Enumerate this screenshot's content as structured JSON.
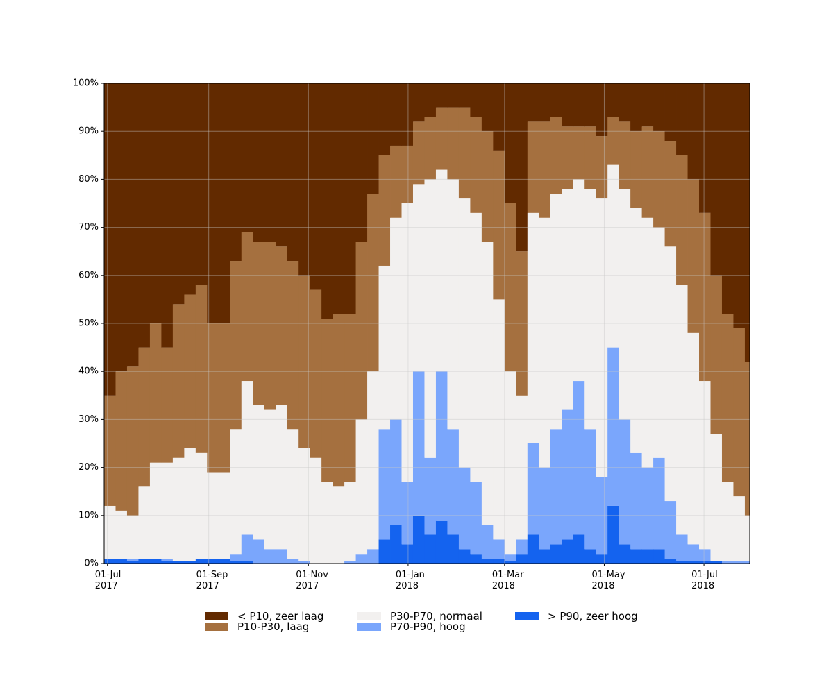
{
  "chart_data": {
    "type": "stacked-step",
    "x": [
      "2017-06-29",
      "2017-07-06",
      "2017-07-13",
      "2017-07-20",
      "2017-07-27",
      "2017-08-03",
      "2017-08-10",
      "2017-08-17",
      "2017-08-24",
      "2017-08-31",
      "2017-09-07",
      "2017-09-14",
      "2017-09-21",
      "2017-09-28",
      "2017-10-05",
      "2017-10-12",
      "2017-10-19",
      "2017-10-26",
      "2017-11-02",
      "2017-11-09",
      "2017-11-16",
      "2017-11-23",
      "2017-11-30",
      "2017-12-07",
      "2017-12-14",
      "2017-12-21",
      "2017-12-28",
      "2018-01-04",
      "2018-01-11",
      "2018-01-18",
      "2018-01-25",
      "2018-02-01",
      "2018-02-08",
      "2018-02-15",
      "2018-02-22",
      "2018-03-01",
      "2018-03-08",
      "2018-03-15",
      "2018-03-22",
      "2018-03-29",
      "2018-04-05",
      "2018-04-12",
      "2018-04-19",
      "2018-04-26",
      "2018-05-03",
      "2018-05-10",
      "2018-05-17",
      "2018-05-24",
      "2018-05-31",
      "2018-06-07",
      "2018-06-14",
      "2018-06-21",
      "2018-06-28",
      "2018-07-05",
      "2018-07-12",
      "2018-07-19",
      "2018-07-26"
    ],
    "series": [
      {
        "name": "> P90, zeer hoog",
        "color": "#1463ef",
        "values": [
          1,
          1,
          0.5,
          1,
          1,
          0.5,
          0.5,
          0.5,
          1,
          1,
          1,
          0.5,
          0.5,
          0,
          0,
          0,
          0,
          0,
          0,
          0,
          0,
          0,
          0,
          0,
          5,
          8,
          4,
          10,
          6,
          9,
          6,
          3,
          2,
          1,
          1,
          0.5,
          2,
          6,
          3,
          4,
          5,
          6,
          3,
          2,
          12,
          4,
          3,
          3,
          3,
          1,
          0.5,
          0.5,
          0.5,
          0.5,
          0,
          0,
          0
        ]
      },
      {
        "name": "P70-P90, hoog",
        "color": "#7aa6fc",
        "values": [
          0,
          0,
          0.5,
          0,
          0,
          0.5,
          0,
          0,
          0,
          0,
          0,
          1.5,
          5.5,
          5,
          3,
          3,
          1,
          0.5,
          0,
          0,
          0,
          0.5,
          2,
          3,
          23,
          22,
          13,
          30,
          16,
          31,
          22,
          17,
          15,
          7,
          4,
          1.5,
          3,
          19,
          17,
          24,
          27,
          32,
          25,
          16,
          33,
          26,
          20,
          17,
          19,
          12,
          5.5,
          3.5,
          2.5,
          0,
          0.5,
          0.5,
          0.5
        ]
      },
      {
        "name": "P30-P70, normaal",
        "color": "#f2f0ef",
        "values": [
          11,
          10,
          9,
          15,
          20,
          20,
          21.5,
          23.5,
          22,
          18,
          18,
          26,
          32,
          28,
          29,
          30,
          27,
          23.5,
          22,
          17,
          16,
          16.5,
          28,
          37,
          34,
          42,
          58,
          39,
          58,
          42,
          52,
          56,
          56,
          59,
          50,
          38,
          30,
          48,
          52,
          49,
          46,
          42,
          50,
          58,
          38,
          48,
          51,
          52,
          48,
          53,
          52,
          44,
          35,
          26.5,
          16.5,
          13.5,
          9.5
        ]
      },
      {
        "name": "P10-P30, laag",
        "color": "#a5703f",
        "values": [
          23,
          29,
          31,
          29,
          29,
          24,
          32,
          32,
          35,
          31,
          31,
          35,
          31,
          34,
          35,
          33,
          35,
          36,
          35,
          34,
          36,
          35,
          37,
          37,
          23,
          15,
          12,
          13,
          13,
          13,
          15,
          19,
          20,
          23,
          31,
          35,
          30,
          19,
          20,
          16,
          13,
          11,
          13,
          13,
          10,
          14,
          16,
          19,
          20,
          22,
          27,
          32,
          35,
          33,
          35,
          35,
          32
        ]
      },
      {
        "name": "< P10, zeer laag",
        "color": "#622a00",
        "values": [
          65,
          60,
          59,
          55,
          50,
          55,
          46,
          44,
          42,
          50,
          50,
          37,
          31,
          33,
          33,
          34,
          37,
          40,
          43,
          49,
          48,
          48,
          33,
          23,
          15,
          13,
          13,
          8,
          7,
          5,
          5,
          5,
          7,
          10,
          14,
          25,
          35,
          8,
          8,
          7,
          9,
          9,
          9,
          11,
          7,
          8,
          10,
          9,
          10,
          12,
          15,
          20,
          27,
          40,
          48,
          51,
          58
        ]
      }
    ],
    "xlim": [
      "2017-06-29",
      "2018-07-29"
    ],
    "xticks": [
      {
        "value": "2017-07-01",
        "label": "01-Jul\n2017"
      },
      {
        "value": "2017-09-01",
        "label": "01-Sep\n2017"
      },
      {
        "value": "2017-11-01",
        "label": "01-Nov\n2017"
      },
      {
        "value": "2018-01-01",
        "label": "01-Jan\n2018"
      },
      {
        "value": "2018-03-01",
        "label": "01-Mar\n2018"
      },
      {
        "value": "2018-05-01",
        "label": "01-May\n2018"
      },
      {
        "value": "2018-07-01",
        "label": "01-Jul\n2018"
      }
    ],
    "ylim": [
      0,
      100
    ],
    "yticks": [
      {
        "value": 0,
        "label": "0%"
      },
      {
        "value": 10,
        "label": "10%"
      },
      {
        "value": 20,
        "label": "20%"
      },
      {
        "value": 30,
        "label": "30%"
      },
      {
        "value": 40,
        "label": "40%"
      },
      {
        "value": 50,
        "label": "50%"
      },
      {
        "value": 60,
        "label": "60%"
      },
      {
        "value": 70,
        "label": "70%"
      },
      {
        "value": 80,
        "label": "80%"
      },
      {
        "value": 90,
        "label": "90%"
      },
      {
        "value": 100,
        "label": "100%"
      }
    ],
    "grid": true
  }
}
